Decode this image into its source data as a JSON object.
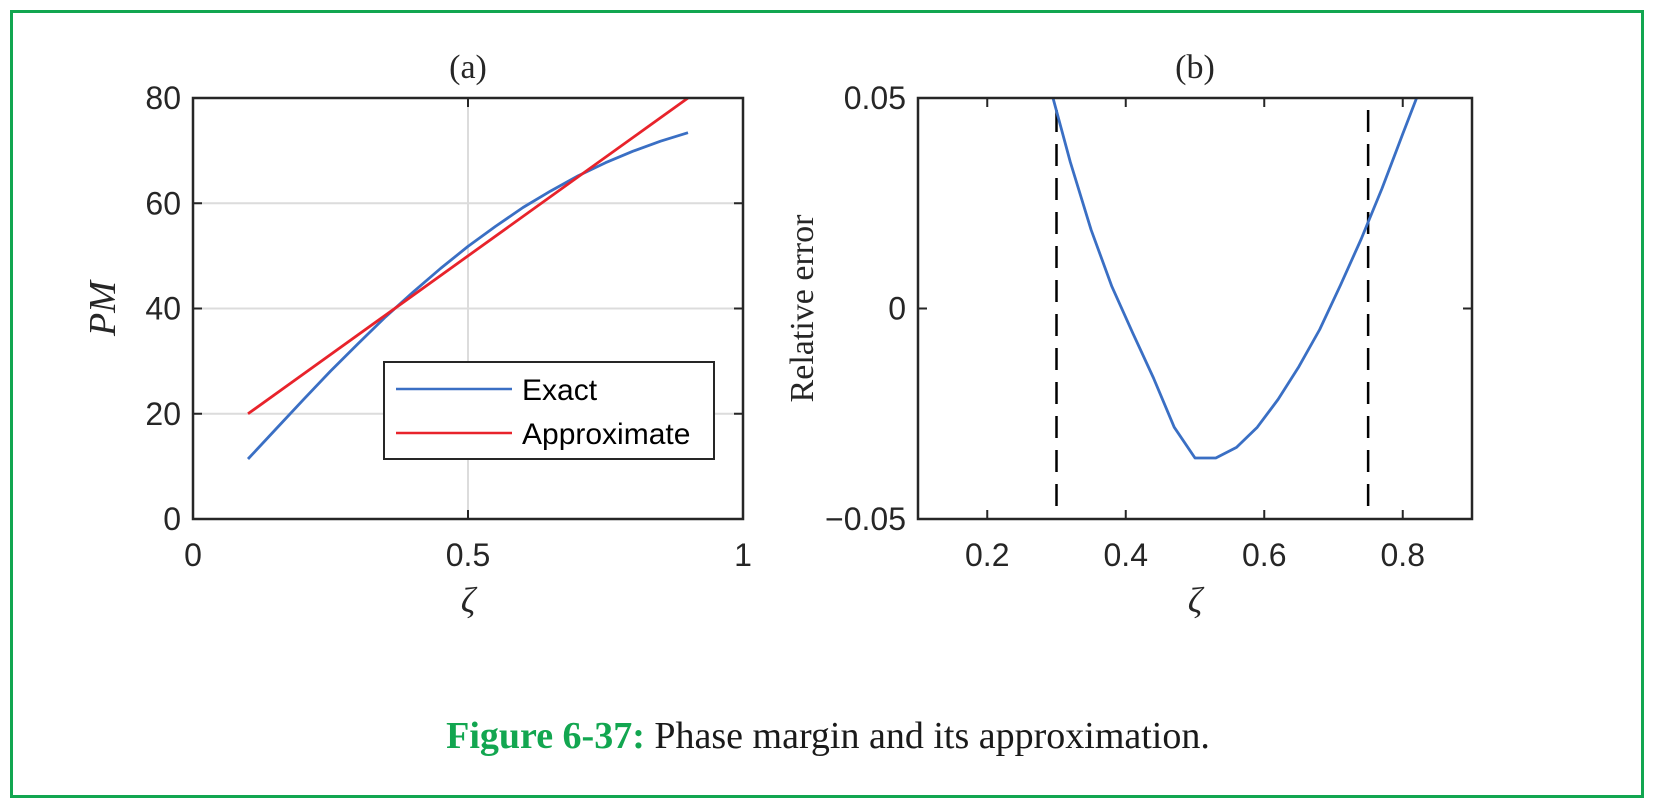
{
  "caption": {
    "label": "Figure 6-37:",
    "text": "Phase margin and its approximation."
  },
  "chart_data": [
    {
      "type": "line",
      "title": "(a)",
      "xlabel": "ζ",
      "ylabel": "PM",
      "xlim": [
        0,
        1
      ],
      "ylim": [
        0,
        80
      ],
      "xticks": [
        0,
        0.5,
        1
      ],
      "xtick_labels": [
        "0",
        "0.5",
        "1"
      ],
      "yticks": [
        0,
        20,
        40,
        60,
        80
      ],
      "ytick_labels": [
        "0",
        "20",
        "40",
        "60",
        "80"
      ],
      "grid": true,
      "legend_position": "lower-right",
      "series": [
        {
          "name": "Exact",
          "color": "#3a6fc4",
          "x": [
            0.1,
            0.15,
            0.2,
            0.25,
            0.3,
            0.35,
            0.4,
            0.45,
            0.5,
            0.55,
            0.6,
            0.65,
            0.7,
            0.75,
            0.8,
            0.85,
            0.9
          ],
          "y": [
            11.4,
            17.0,
            22.6,
            28.1,
            33.3,
            38.4,
            43.1,
            47.6,
            51.8,
            55.6,
            59.2,
            62.3,
            65.2,
            67.7,
            69.9,
            71.8,
            73.4
          ]
        },
        {
          "name": "Approximate",
          "color": "#e8232b",
          "x": [
            0.1,
            0.9
          ],
          "y": [
            20,
            80
          ]
        }
      ]
    },
    {
      "type": "line",
      "title": "(b)",
      "xlabel": "ζ",
      "ylabel": "Relative error",
      "xlim": [
        0.1,
        0.9
      ],
      "ylim": [
        -0.05,
        0.05
      ],
      "xticks": [
        0.2,
        0.4,
        0.6,
        0.8
      ],
      "xtick_labels": [
        "0.2",
        "0.4",
        "0.6",
        "0.8"
      ],
      "yticks": [
        -0.05,
        0,
        0.05
      ],
      "ytick_labels": [
        "−0.05",
        "0",
        "0.05"
      ],
      "grid": false,
      "vlines": [
        0.3,
        0.75
      ],
      "series": [
        {
          "color": "#3a6fc4",
          "x": [
            0.295,
            0.32,
            0.35,
            0.38,
            0.41,
            0.44,
            0.47,
            0.5,
            0.53,
            0.56,
            0.59,
            0.62,
            0.65,
            0.68,
            0.71,
            0.74,
            0.77,
            0.8,
            0.82
          ],
          "y": [
            0.05,
            0.0348,
            0.0187,
            0.0052,
            -0.0058,
            -0.0165,
            -0.0282,
            -0.0355,
            -0.0355,
            -0.033,
            -0.0282,
            -0.0216,
            -0.0138,
            -0.005,
            0.0055,
            0.0165,
            0.0285,
            0.0415,
            0.05
          ]
        }
      ]
    }
  ]
}
